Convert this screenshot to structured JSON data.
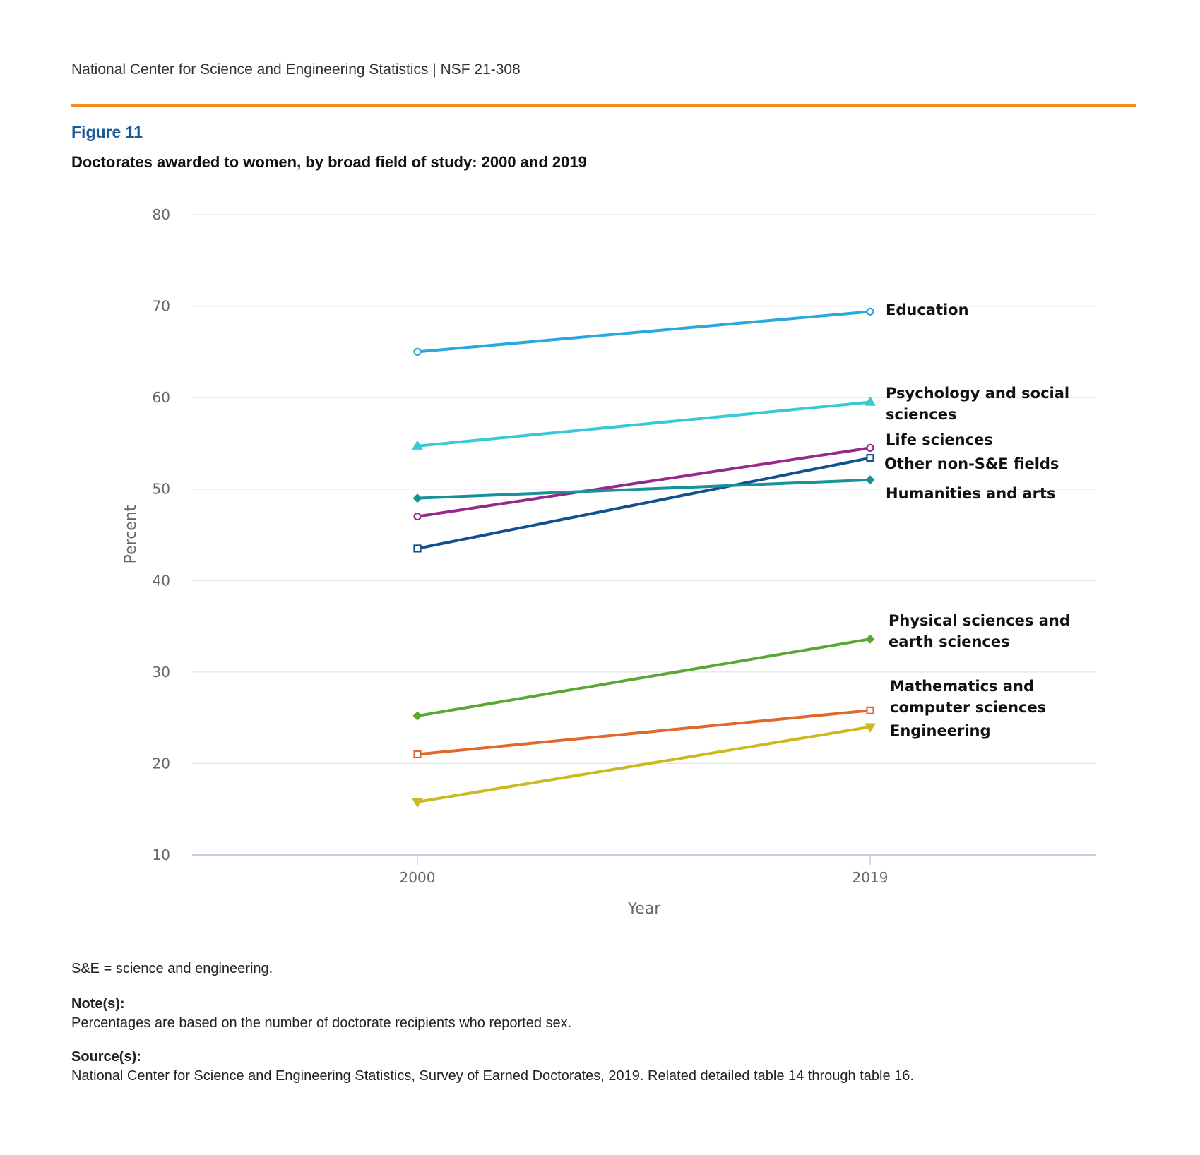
{
  "header": {
    "text": "National Center for Science and Engineering Statistics  |  NSF 21-308",
    "figure_label": "Figure 11",
    "figure_title": "Doctorates awarded to women, by broad field of study: 2000 and 2019"
  },
  "colors": {
    "rule": "#f28c1e",
    "figure_label": "#1a5a96"
  },
  "chart_data": {
    "type": "line",
    "xlabel": "Year",
    "ylabel": "Percent",
    "x": [
      "2000",
      "2019"
    ],
    "ylim": [
      10,
      80
    ],
    "yticks": [
      10,
      20,
      30,
      40,
      50,
      60,
      70,
      80
    ],
    "grid": true,
    "legend": "direct labels at line ends",
    "series": [
      {
        "name": "Education",
        "label_lines": [
          "Education"
        ],
        "values": [
          65.0,
          69.4
        ],
        "color": "#29a8e0",
        "marker": "circle"
      },
      {
        "name": "Psychology and social sciences",
        "label_lines": [
          "Psychology and social",
          "sciences"
        ],
        "values": [
          54.7,
          59.5
        ],
        "color": "#34cbd6",
        "marker": "triangle"
      },
      {
        "name": "Life sciences",
        "label_lines": [
          "Life sciences"
        ],
        "values": [
          47.0,
          54.5
        ],
        "color": "#962a8c",
        "marker": "circle"
      },
      {
        "name": "Other non-S&E fields",
        "label_lines": [
          "Other non-S&E fields"
        ],
        "values": [
          43.5,
          53.4
        ],
        "color": "#13508e",
        "marker": "square"
      },
      {
        "name": "Humanities and arts",
        "label_lines": [
          "Humanities and arts"
        ],
        "values": [
          49.0,
          51.0
        ],
        "color": "#17919a",
        "marker": "diamond"
      },
      {
        "name": "Physical sciences and earth sciences",
        "label_lines": [
          "Physical sciences and",
          "earth sciences"
        ],
        "values": [
          25.2,
          33.6
        ],
        "color": "#5aa832",
        "marker": "diamond"
      },
      {
        "name": "Mathematics and computer sciences",
        "label_lines": [
          "Mathematics and",
          "computer sciences"
        ],
        "values": [
          21.0,
          25.8
        ],
        "color": "#e0692a",
        "marker": "square"
      },
      {
        "name": "Engineering",
        "label_lines": [
          "Engineering"
        ],
        "values": [
          15.8,
          24.0
        ],
        "color": "#cdb91f",
        "marker": "triangle-down"
      }
    ]
  },
  "footnotes": {
    "abbrev": "S&E = science and engineering.",
    "note_head": "Note(s):",
    "note_text": "Percentages are based on the number of doctorate recipients who reported sex.",
    "source_head": "Source(s):",
    "source_text": "National Center for Science and Engineering Statistics, Survey of Earned Doctorates, 2019. Related detailed table 14 through table 16."
  }
}
